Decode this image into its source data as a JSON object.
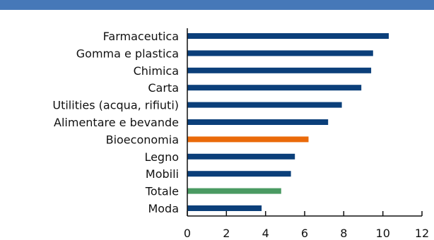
{
  "colors": {
    "top_bar": "#4678b8",
    "bar_default": "#0b3f7a",
    "bar_highlight_bioeconomia": "#ea6a0a",
    "bar_highlight_totale": "#4a9a62",
    "axis": "#111111"
  },
  "chart_data": {
    "type": "bar",
    "orientation": "horizontal",
    "categories": [
      "Farmaceutica",
      "Gomma e plastica",
      "Chimica",
      "Carta",
      "Utilities (acqua, rifiuti)",
      "Alimentare e bevande",
      "Bioeconomia",
      "Legno",
      "Mobili",
      "Totale",
      "Moda"
    ],
    "values": [
      10.3,
      9.5,
      9.4,
      8.9,
      7.9,
      7.2,
      6.2,
      5.5,
      5.3,
      4.8,
      3.8
    ],
    "highlight": {
      "Bioeconomia": "bar_highlight_bioeconomia",
      "Totale": "bar_highlight_totale"
    },
    "xlim": [
      0,
      12
    ],
    "x_ticks": [
      "0",
      "2",
      "4",
      "6",
      "8",
      "10",
      "12"
    ],
    "grid": false
  }
}
